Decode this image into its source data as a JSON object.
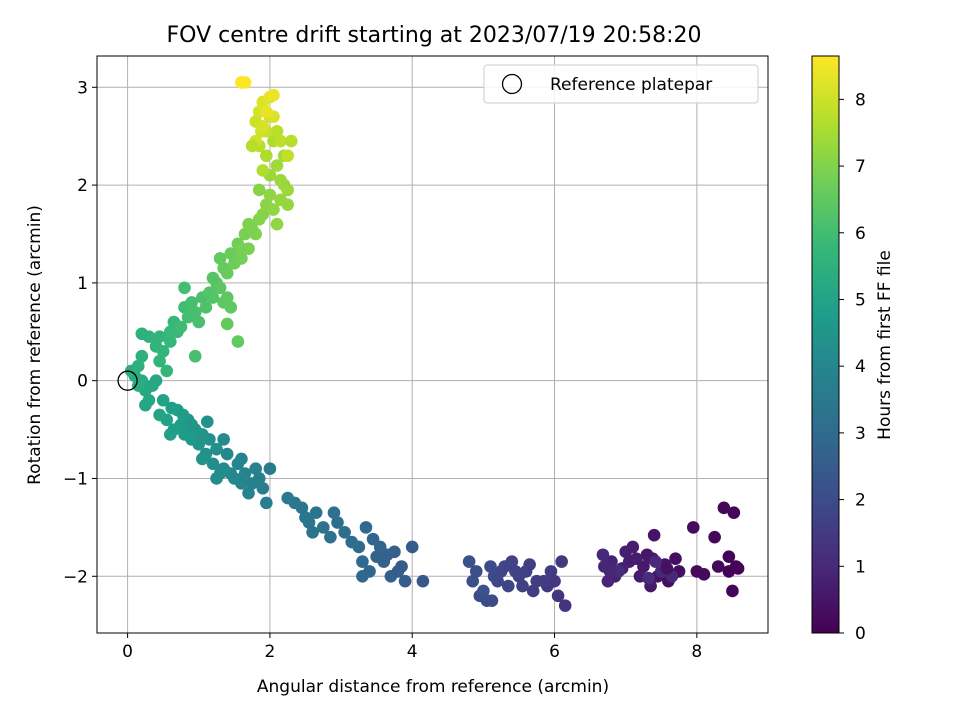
{
  "chart_data": {
    "type": "scatter",
    "title": "FOV centre drift starting at 2023/07/19 20:58:20",
    "xlabel": "Angular distance from reference (arcmin)",
    "ylabel": "Rotation from reference (arcmin)",
    "xlim": [
      -0.43,
      9.0
    ],
    "ylim": [
      -2.58,
      3.32
    ],
    "xticks": [
      0,
      2,
      4,
      6,
      8
    ],
    "xtick_labels": [
      "0",
      "2",
      "4",
      "6",
      "8"
    ],
    "yticks": [
      -2,
      -1,
      0,
      1,
      2,
      3
    ],
    "ytick_labels": [
      "−2",
      "−1",
      "0",
      "1",
      "2",
      "3"
    ],
    "grid": true,
    "legend": {
      "position": "top-right",
      "entries": [
        {
          "label": "Reference platepar",
          "marker": "open-circle"
        }
      ]
    },
    "reference_point": {
      "x": 0,
      "y": 0
    },
    "colorbar": {
      "label": "Hours from first FF file",
      "range": [
        0,
        8.65
      ],
      "ticks": [
        0,
        1,
        2,
        3,
        4,
        5,
        6,
        7,
        8
      ],
      "tick_labels": [
        "0",
        "1",
        "2",
        "3",
        "4",
        "5",
        "6",
        "7",
        "8"
      ],
      "colormap": "viridis",
      "colors": [
        "#440154",
        "#482878",
        "#3e4989",
        "#31688e",
        "#26828e",
        "#1f9e89",
        "#35b779",
        "#6ece58",
        "#b5de2b",
        "#fde725"
      ]
    },
    "series": [
      {
        "points": [
          [
            8.55,
            -1.9,
            0.05
          ],
          [
            8.5,
            -2.15,
            0.08
          ],
          [
            8.45,
            -1.8,
            0.1
          ],
          [
            8.52,
            -1.35,
            0.12
          ],
          [
            8.38,
            -1.3,
            0.15
          ],
          [
            8.25,
            -1.6,
            0.18
          ],
          [
            8.3,
            -1.9,
            0.2
          ],
          [
            8.1,
            -1.98,
            0.22
          ],
          [
            8.0,
            -1.95,
            0.25
          ],
          [
            7.95,
            -1.5,
            0.28
          ],
          [
            7.7,
            -1.82,
            0.32
          ],
          [
            7.75,
            -1.95,
            0.35
          ],
          [
            7.6,
            -2.05,
            0.38
          ],
          [
            7.55,
            -1.88,
            0.42
          ],
          [
            7.45,
            -2.0,
            0.45
          ],
          [
            7.4,
            -1.58,
            0.48
          ],
          [
            7.38,
            -1.82,
            0.52
          ],
          [
            7.3,
            -1.78,
            0.55
          ],
          [
            7.35,
            -2.1,
            0.58
          ],
          [
            7.25,
            -1.9,
            0.62
          ],
          [
            7.2,
            -2.0,
            0.65
          ],
          [
            7.1,
            -1.7,
            0.68
          ],
          [
            7.05,
            -1.85,
            0.72
          ],
          [
            7.0,
            -1.75,
            0.75
          ],
          [
            6.95,
            -1.92,
            0.78
          ],
          [
            6.85,
            -2.0,
            0.82
          ],
          [
            6.8,
            -1.85,
            0.85
          ],
          [
            6.75,
            -2.05,
            0.88
          ],
          [
            6.7,
            -1.9,
            0.92
          ],
          [
            6.68,
            -1.78,
            0.95
          ],
          [
            7.5,
            -1.95,
            0.98
          ],
          [
            7.65,
            -2.0,
            1.0
          ],
          [
            7.42,
            -1.85,
            1.05
          ],
          [
            7.32,
            -2.02,
            1.1
          ],
          [
            6.9,
            -1.95,
            1.15
          ],
          [
            8.45,
            -1.95,
            0.06
          ],
          [
            8.58,
            -1.92,
            0.09
          ],
          [
            7.58,
            -1.92,
            0.4
          ],
          [
            7.15,
            -1.82,
            0.7
          ],
          [
            6.78,
            -1.95,
            0.9
          ],
          [
            6.15,
            -2.3,
            1.3
          ],
          [
            6.05,
            -2.2,
            1.35
          ],
          [
            5.9,
            -2.1,
            1.4
          ],
          [
            6.1,
            -1.85,
            1.45
          ],
          [
            5.95,
            -1.95,
            1.5
          ],
          [
            5.85,
            -2.05,
            1.55
          ],
          [
            5.7,
            -2.15,
            1.6
          ],
          [
            5.6,
            -1.95,
            1.65
          ],
          [
            5.5,
            -2.0,
            1.7
          ],
          [
            5.4,
            -1.85,
            1.75
          ],
          [
            5.35,
            -2.1,
            1.8
          ],
          [
            5.25,
            -1.95,
            1.85
          ],
          [
            5.2,
            -2.05,
            1.9
          ],
          [
            5.1,
            -1.9,
            1.95
          ],
          [
            5.05,
            -2.25,
            2.0
          ],
          [
            4.95,
            -2.2,
            2.05
          ],
          [
            4.9,
            -1.95,
            2.1
          ],
          [
            4.85,
            -2.05,
            2.15
          ],
          [
            4.8,
            -1.85,
            2.2
          ],
          [
            5.0,
            -2.15,
            2.25
          ],
          [
            5.45,
            -1.95,
            1.72
          ],
          [
            5.65,
            -1.88,
            1.62
          ],
          [
            5.55,
            -2.1,
            1.67
          ],
          [
            5.15,
            -2.0,
            1.92
          ],
          [
            5.3,
            -1.9,
            1.82
          ],
          [
            5.75,
            -2.05,
            1.58
          ],
          [
            6.0,
            -2.05,
            1.42
          ],
          [
            5.12,
            -2.25,
            1.98
          ],
          [
            4.15,
            -2.05,
            2.4
          ],
          [
            4.0,
            -1.7,
            2.45
          ],
          [
            3.9,
            -2.05,
            2.5
          ],
          [
            3.85,
            -1.9,
            2.55
          ],
          [
            3.75,
            -1.75,
            2.6
          ],
          [
            3.7,
            -2.0,
            2.65
          ],
          [
            3.6,
            -1.85,
            2.7
          ],
          [
            3.55,
            -1.7,
            2.75
          ],
          [
            3.5,
            -1.8,
            2.8
          ],
          [
            3.4,
            -1.95,
            2.85
          ],
          [
            3.35,
            -1.5,
            2.9
          ],
          [
            3.3,
            -1.85,
            2.95
          ],
          [
            3.25,
            -1.7,
            3.0
          ],
          [
            3.15,
            -1.65,
            3.05
          ],
          [
            3.05,
            -1.55,
            3.1
          ],
          [
            2.95,
            -1.45,
            3.15
          ],
          [
            2.85,
            -1.6,
            3.2
          ],
          [
            2.75,
            -1.5,
            3.25
          ],
          [
            2.65,
            -1.35,
            3.3
          ],
          [
            2.55,
            -1.45,
            3.35
          ],
          [
            2.45,
            -1.3,
            3.4
          ],
          [
            2.35,
            -1.25,
            3.45
          ],
          [
            2.25,
            -1.2,
            3.5
          ],
          [
            3.8,
            -1.95,
            2.52
          ],
          [
            3.65,
            -1.78,
            2.68
          ],
          [
            3.45,
            -1.62,
            2.82
          ],
          [
            3.3,
            -2.0,
            2.92
          ],
          [
            2.6,
            -1.55,
            3.32
          ],
          [
            2.5,
            -1.4,
            3.38
          ],
          [
            2.9,
            -1.35,
            3.18
          ],
          [
            2.0,
            -0.9,
            3.6
          ],
          [
            1.95,
            -1.25,
            3.65
          ],
          [
            1.9,
            -1.1,
            3.7
          ],
          [
            1.85,
            -1.0,
            3.75
          ],
          [
            1.8,
            -0.9,
            3.8
          ],
          [
            1.7,
            -1.15,
            3.85
          ],
          [
            1.65,
            -0.95,
            3.9
          ],
          [
            1.6,
            -1.05,
            3.95
          ],
          [
            1.55,
            -0.85,
            4.0
          ],
          [
            1.45,
            -0.95,
            4.05
          ],
          [
            1.4,
            -0.75,
            4.1
          ],
          [
            1.35,
            -0.9,
            4.15
          ],
          [
            1.3,
            -0.95,
            4.2
          ],
          [
            1.25,
            -0.7,
            4.25
          ],
          [
            1.2,
            -0.85,
            4.3
          ],
          [
            1.15,
            -0.6,
            4.35
          ],
          [
            1.1,
            -0.75,
            4.4
          ],
          [
            1.05,
            -0.55,
            4.45
          ],
          [
            1.0,
            -0.65,
            4.5
          ],
          [
            0.95,
            -0.5,
            4.55
          ],
          [
            0.9,
            -0.6,
            4.6
          ],
          [
            0.85,
            -0.4,
            4.65
          ],
          [
            0.8,
            -0.55,
            4.7
          ],
          [
            0.75,
            -0.45,
            4.75
          ],
          [
            0.7,
            -0.3,
            4.8
          ],
          [
            0.65,
            -0.5,
            4.85
          ],
          [
            0.6,
            -0.55,
            4.9
          ],
          [
            0.55,
            -0.4,
            4.95
          ],
          [
            0.5,
            -0.2,
            5.0
          ],
          [
            0.45,
            -0.35,
            5.05
          ],
          [
            1.75,
            -1.05,
            3.82
          ],
          [
            1.5,
            -1.0,
            4.02
          ],
          [
            1.25,
            -1.0,
            4.22
          ],
          [
            1.05,
            -0.8,
            4.42
          ],
          [
            0.9,
            -0.45,
            4.58
          ],
          [
            1.12,
            -0.42,
            4.38
          ],
          [
            0.78,
            -0.35,
            4.72
          ],
          [
            0.62,
            -0.28,
            4.88
          ],
          [
            1.35,
            -0.6,
            4.12
          ],
          [
            1.6,
            -0.8,
            3.92
          ],
          [
            0.4,
            0.0,
            5.1
          ],
          [
            0.3,
            -0.2,
            5.15
          ],
          [
            0.25,
            -0.1,
            5.2
          ],
          [
            0.2,
            0.0,
            5.25
          ],
          [
            0.15,
            -0.05,
            5.3
          ],
          [
            0.1,
            0.05,
            5.35
          ],
          [
            0.05,
            0.1,
            5.4
          ],
          [
            0.15,
            0.15,
            5.45
          ],
          [
            0.2,
            0.25,
            5.5
          ],
          [
            0.25,
            -0.25,
            5.12
          ],
          [
            0.35,
            -0.05,
            5.14
          ],
          [
            0.3,
            0.45,
            5.55
          ],
          [
            0.4,
            0.35,
            5.6
          ],
          [
            0.5,
            0.3,
            5.65
          ],
          [
            0.45,
            0.2,
            5.7
          ],
          [
            0.55,
            0.1,
            5.72
          ],
          [
            0.6,
            0.4,
            5.75
          ],
          [
            0.65,
            0.6,
            5.8
          ],
          [
            0.7,
            0.5,
            5.85
          ],
          [
            0.75,
            0.55,
            5.9
          ],
          [
            0.8,
            0.75,
            5.95
          ],
          [
            0.85,
            0.65,
            6.0
          ],
          [
            0.9,
            0.8,
            6.05
          ],
          [
            0.95,
            0.7,
            6.1
          ],
          [
            1.0,
            0.6,
            6.12
          ],
          [
            1.05,
            0.85,
            6.15
          ],
          [
            1.1,
            0.75,
            6.2
          ],
          [
            1.15,
            0.9,
            6.25
          ],
          [
            1.2,
            0.85,
            6.3
          ],
          [
            1.25,
            1.0,
            6.35
          ],
          [
            1.3,
            0.95,
            6.4
          ],
          [
            1.35,
            0.8,
            6.42
          ],
          [
            1.4,
            0.85,
            6.45
          ],
          [
            1.45,
            0.75,
            6.48
          ],
          [
            1.55,
            0.4,
            6.5
          ],
          [
            1.4,
            0.58,
            6.52
          ],
          [
            0.95,
            0.25,
            6.08
          ],
          [
            0.8,
            0.95,
            6.0
          ],
          [
            0.6,
            0.5,
            5.8
          ],
          [
            0.45,
            0.45,
            5.62
          ],
          [
            0.2,
            0.48,
            5.52
          ],
          [
            1.2,
            1.05,
            6.3
          ],
          [
            1.3,
            1.25,
            6.55
          ],
          [
            1.35,
            1.15,
            6.6
          ],
          [
            1.4,
            1.1,
            6.62
          ],
          [
            1.45,
            1.3,
            6.65
          ],
          [
            1.5,
            1.2,
            6.7
          ],
          [
            1.55,
            1.4,
            6.75
          ],
          [
            1.6,
            1.25,
            6.8
          ],
          [
            1.65,
            1.5,
            6.85
          ],
          [
            1.7,
            1.35,
            6.88
          ],
          [
            1.75,
            1.55,
            6.9
          ],
          [
            1.8,
            1.5,
            6.95
          ],
          [
            1.85,
            1.65,
            7.0
          ],
          [
            1.9,
            1.7,
            7.05
          ],
          [
            1.95,
            1.8,
            7.1
          ],
          [
            2.0,
            1.9,
            7.15
          ],
          [
            2.05,
            1.75,
            7.18
          ],
          [
            2.1,
            1.6,
            7.2
          ],
          [
            2.15,
            1.85,
            7.25
          ],
          [
            2.2,
            2.0,
            7.3
          ],
          [
            2.25,
            1.95,
            7.35
          ],
          [
            1.6,
            1.35,
            6.82
          ],
          [
            1.7,
            1.6,
            6.92
          ],
          [
            1.85,
            1.95,
            7.05
          ],
          [
            2.0,
            2.1,
            7.3
          ],
          [
            2.1,
            2.2,
            7.4
          ],
          [
            2.2,
            2.3,
            7.45
          ],
          [
            2.15,
            2.05,
            7.32
          ],
          [
            2.25,
            1.8,
            7.28
          ],
          [
            2.05,
            2.45,
            7.55
          ],
          [
            1.95,
            2.3,
            7.6
          ],
          [
            1.9,
            2.15,
            7.65
          ],
          [
            1.85,
            2.4,
            7.7
          ],
          [
            2.1,
            2.55,
            7.75
          ],
          [
            2.15,
            2.45,
            7.8
          ],
          [
            2.25,
            2.3,
            7.85
          ],
          [
            1.95,
            2.55,
            7.9
          ],
          [
            2.0,
            2.7,
            7.95
          ],
          [
            1.8,
            2.65,
            8.0
          ],
          [
            1.85,
            2.75,
            8.1
          ],
          [
            1.9,
            2.85,
            8.2
          ],
          [
            2.05,
            2.7,
            8.15
          ],
          [
            2.0,
            2.9,
            8.3
          ],
          [
            1.95,
            2.75,
            8.35
          ],
          [
            1.8,
            2.45,
            8.05
          ],
          [
            1.75,
            2.4,
            7.72
          ],
          [
            1.88,
            2.55,
            8.05
          ],
          [
            2.3,
            2.45,
            7.7
          ],
          [
            2.05,
            2.92,
            8.4
          ],
          [
            1.9,
            2.6,
            8.12
          ],
          [
            1.6,
            3.05,
            8.6
          ],
          [
            1.65,
            3.05,
            8.65
          ]
        ]
      }
    ]
  }
}
